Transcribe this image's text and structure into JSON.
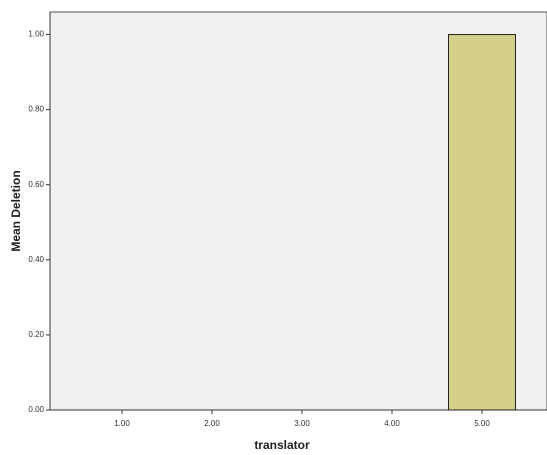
{
  "chart_data": {
    "type": "bar",
    "x_label": "translator",
    "y_label": "Mean Deletion",
    "categories": [
      "1.00",
      "2.00",
      "3.00",
      "4.00",
      "5.00"
    ],
    "values": [
      0,
      0,
      0,
      0,
      1.0
    ],
    "color": "#d5cf8c",
    "ylim": [
      0,
      1.06
    ],
    "yticks": [
      {
        "value": 0,
        "label": "0.00"
      },
      {
        "value": 0.2,
        "label": "0.20"
      },
      {
        "value": 0.4,
        "label": "0.40"
      },
      {
        "value": 0.6,
        "label": "0.60"
      },
      {
        "value": 0.8,
        "label": "0.80"
      },
      {
        "value": 1.0,
        "label": "1.00"
      }
    ]
  }
}
